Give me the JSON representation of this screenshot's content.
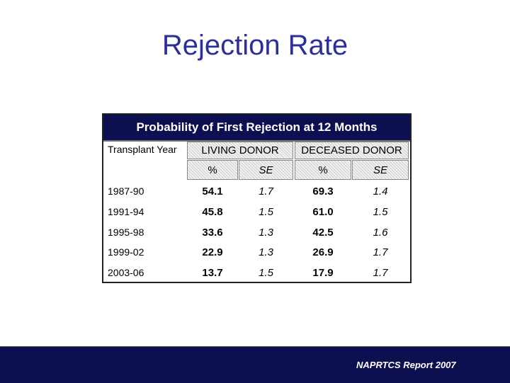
{
  "slide": {
    "title": "Rejection Rate",
    "footer_credit": "NAPRTCS Report 2007"
  },
  "table": {
    "caption": "Probability of First Rejection at 12 Months",
    "year_header": "Transplant Year",
    "group_headers": [
      "LIVING DONOR",
      "DECEASED DONOR"
    ],
    "sub_headers": [
      "%",
      "SE",
      "%",
      "SE"
    ],
    "rows": [
      {
        "year": "1987-90",
        "living_pct": "54.1",
        "living_se": "1.7",
        "deceased_pct": "69.3",
        "deceased_se": "1.4"
      },
      {
        "year": "1991-94",
        "living_pct": "45.8",
        "living_se": "1.5",
        "deceased_pct": "61.0",
        "deceased_se": "1.5"
      },
      {
        "year": "1995-98",
        "living_pct": "33.6",
        "living_se": "1.3",
        "deceased_pct": "42.5",
        "deceased_se": "1.6"
      },
      {
        "year": "1999-02",
        "living_pct": "22.9",
        "living_se": "1.3",
        "deceased_pct": "26.9",
        "deceased_se": "1.7"
      },
      {
        "year": "2003-06",
        "living_pct": "13.7",
        "living_se": "1.5",
        "deceased_pct": "17.9",
        "deceased_se": "1.7"
      }
    ]
  },
  "colors": {
    "title": "#2b2f9a",
    "banner": "#0c1050"
  }
}
